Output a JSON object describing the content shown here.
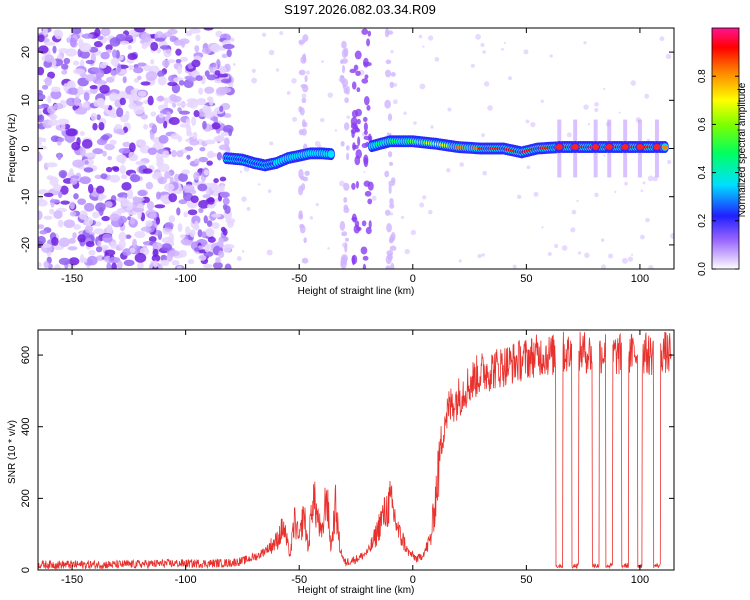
{
  "title": "S197.2026.082.03.34.R09",
  "colors": {
    "line": "#e8302c",
    "axis": "#000000",
    "background": "#ffffff",
    "noise": "#8a2be2"
  },
  "chart_data": [
    {
      "type": "heatmap",
      "xlabel": "Height of straight line (km)",
      "ylabel": "Frequency (Hz)",
      "xlim": [
        -165,
        115
      ],
      "ylim": [
        -25,
        25
      ],
      "xticks": [
        -150,
        -100,
        -50,
        0,
        50,
        100
      ],
      "yticks": [
        -20,
        -10,
        0,
        10,
        20
      ],
      "colorbar": {
        "label": "Normalized spectral amplitude",
        "range": [
          0,
          1
        ],
        "ticks": [
          0.0,
          0.2,
          0.4,
          0.6,
          0.8
        ]
      },
      "signal_track": [
        {
          "x": -82,
          "freq": -2.0,
          "amp": 0.25
        },
        {
          "x": -75,
          "freq": -2.3,
          "amp": 0.3
        },
        {
          "x": -70,
          "freq": -3.0,
          "amp": 0.3
        },
        {
          "x": -65,
          "freq": -3.5,
          "amp": 0.32
        },
        {
          "x": -60,
          "freq": -3.0,
          "amp": 0.35
        },
        {
          "x": -55,
          "freq": -2.0,
          "amp": 0.4
        },
        {
          "x": -50,
          "freq": -1.5,
          "amp": 0.4
        },
        {
          "x": -45,
          "freq": -1.0,
          "amp": 0.45
        },
        {
          "x": -40,
          "freq": -1.0,
          "amp": 0.45
        },
        {
          "x": -35,
          "freq": -1.2,
          "amp": 0.35
        },
        {
          "x": -18,
          "freq": 0.5,
          "amp": 0.45
        },
        {
          "x": -10,
          "freq": 1.5,
          "amp": 0.55
        },
        {
          "x": 0,
          "freq": 1.5,
          "amp": 0.6
        },
        {
          "x": 10,
          "freq": 1.0,
          "amp": 0.75
        },
        {
          "x": 20,
          "freq": 0.3,
          "amp": 0.85
        },
        {
          "x": 30,
          "freq": 0.0,
          "amp": 0.92
        },
        {
          "x": 40,
          "freq": 0.0,
          "amp": 0.95
        },
        {
          "x": 48,
          "freq": -0.8,
          "amp": 0.95
        },
        {
          "x": 55,
          "freq": 0.0,
          "amp": 0.92
        },
        {
          "x": 65,
          "freq": 0.3,
          "amp": 0.95
        },
        {
          "x": 75,
          "freq": 0.3,
          "amp": 0.95
        },
        {
          "x": 85,
          "freq": 0.3,
          "amp": 0.95
        },
        {
          "x": 95,
          "freq": 0.3,
          "amp": 0.95
        },
        {
          "x": 105,
          "freq": 0.3,
          "amp": 0.95
        },
        {
          "x": 112,
          "freq": 0.3,
          "amp": 0.9
        }
      ]
    },
    {
      "type": "line",
      "xlabel": "Height of straight line (km)",
      "ylabel": "SNR (10 * v/v)",
      "xlim": [
        -165,
        115
      ],
      "ylim": [
        0,
        670
      ],
      "xticks": [
        -150,
        -100,
        -50,
        0,
        50,
        100
      ],
      "yticks": [
        0,
        200,
        400,
        600
      ],
      "series": [
        {
          "name": "SNR",
          "x": [
            -165,
            -150,
            -130,
            -110,
            -90,
            -80,
            -75,
            -68,
            -64,
            -60,
            -57,
            -54,
            -52,
            -50,
            -48,
            -46,
            -44,
            -42,
            -40,
            -38,
            -36,
            -34,
            -32,
            -30,
            -28,
            -25,
            -22,
            -20,
            -18,
            -16,
            -14,
            -12,
            -10,
            -8,
            -6,
            -4,
            -2,
            0,
            2,
            4,
            6,
            8,
            10,
            12,
            14,
            16,
            18,
            20,
            22,
            25,
            28,
            30,
            35,
            40,
            45,
            50,
            55,
            60,
            63,
            66,
            70,
            75,
            80,
            85,
            90,
            95,
            100,
            105,
            110,
            114
          ],
          "y": [
            15,
            15,
            15,
            18,
            18,
            20,
            25,
            40,
            60,
            80,
            120,
            40,
            140,
            80,
            160,
            60,
            210,
            150,
            90,
            220,
            60,
            180,
            60,
            20,
            25,
            30,
            40,
            50,
            70,
            100,
            140,
            160,
            190,
            150,
            100,
            80,
            50,
            40,
            30,
            40,
            60,
            90,
            200,
            330,
            420,
            450,
            470,
            480,
            500,
            520,
            540,
            550,
            560,
            570,
            580,
            590,
            600,
            600,
            600,
            610,
            600,
            610,
            600,
            610,
            600,
            600,
            610,
            600,
            610,
            600
          ],
          "dropouts": [
            {
              "start": 63,
              "end": 66,
              "value": 12
            },
            {
              "start": 70,
              "end": 73,
              "value": 12
            },
            {
              "start": 79,
              "end": 82,
              "value": 12
            },
            {
              "start": 85,
              "end": 88,
              "value": 12
            },
            {
              "start": 92,
              "end": 95,
              "value": 12
            },
            {
              "start": 99,
              "end": 101,
              "value": 12
            },
            {
              "start": 106,
              "end": 109,
              "value": 12
            }
          ]
        }
      ]
    }
  ]
}
